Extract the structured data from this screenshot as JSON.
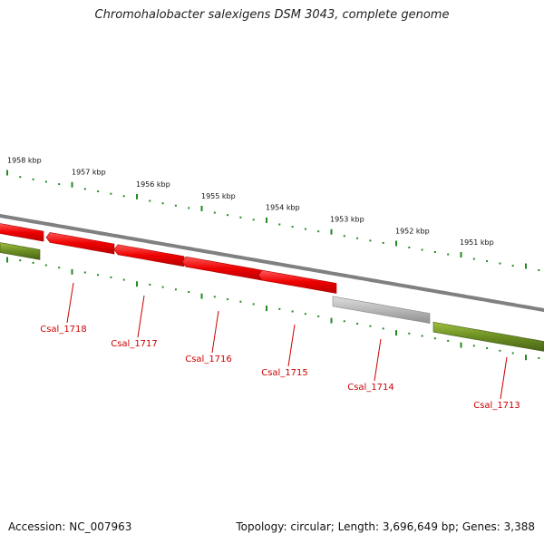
{
  "title": "Chromohalobacter salexigens DSM 3043, complete genome",
  "footer": {
    "accession": "Accession: NC_007963",
    "stats": "Topology: circular; Length: 3,696,649 bp; Genes: 3,388"
  },
  "colors": {
    "forward_gene": "#ee1111",
    "reverse_gene": "#6b8e23",
    "other_gene": "#b5b5b5",
    "backbone": "#808080",
    "tick": "#228b22",
    "gene_label": "#cc0000"
  },
  "kbp_ticks": [
    {
      "label": "1958 kbp"
    },
    {
      "label": "1957 kbp"
    },
    {
      "label": "1956 kbp"
    },
    {
      "label": "1955 kbp"
    },
    {
      "label": "1954 kbp"
    },
    {
      "label": "1953 kbp"
    },
    {
      "label": "1952 kbp"
    },
    {
      "label": "1951 kbp"
    }
  ],
  "genes": [
    {
      "label": "Csal_1718",
      "type": "forward"
    },
    {
      "label": "Csal_1717",
      "type": "forward"
    },
    {
      "label": "Csal_1716",
      "type": "forward"
    },
    {
      "label": "Csal_1715",
      "type": "forward"
    },
    {
      "label": "Csal_1714",
      "type": "other"
    },
    {
      "label": "Csal_1713",
      "type": "reverse"
    }
  ]
}
